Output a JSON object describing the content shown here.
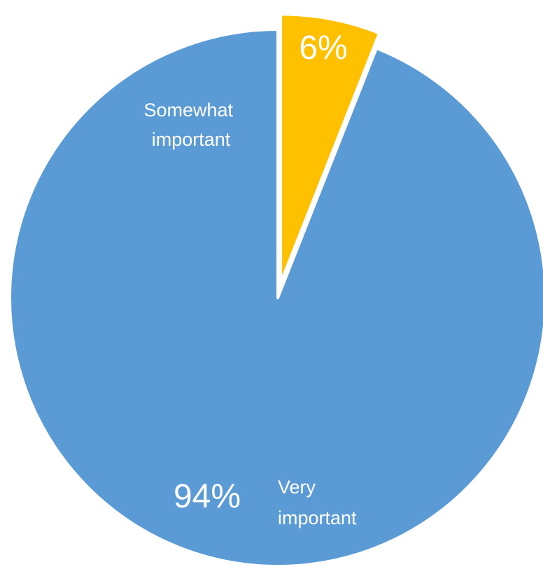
{
  "chart_data": {
    "type": "pie",
    "title": "",
    "slices": [
      {
        "value": 6,
        "value_label": "6%",
        "color": "#FFC000",
        "exploded": true
      },
      {
        "value": 94,
        "value_label": "94%",
        "color": "#5B9BD5",
        "exploded": false
      }
    ],
    "annotations": [
      {
        "text_lines": [
          "Somewhat",
          "important"
        ]
      },
      {
        "text_lines": [
          "Very",
          "important"
        ]
      }
    ]
  }
}
